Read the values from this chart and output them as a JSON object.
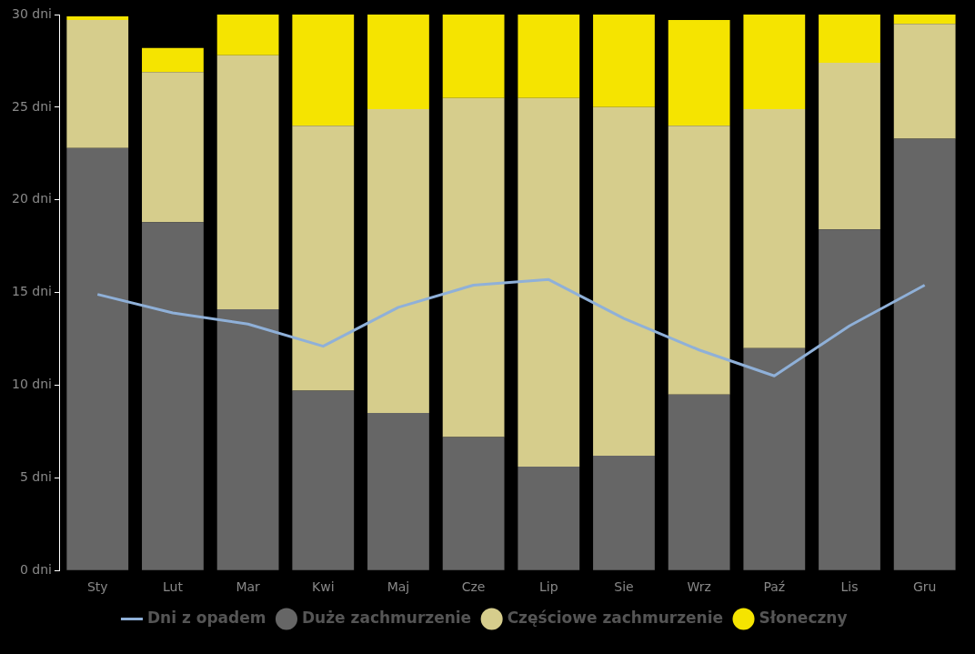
{
  "chart_data": {
    "type": "bar",
    "stacked": true,
    "categories": [
      "Sty",
      "Lut",
      "Mar",
      "Kwi",
      "Maj",
      "Cze",
      "Lip",
      "Sie",
      "Wrz",
      "Paź",
      "Lis",
      "Gru"
    ],
    "series": [
      {
        "name": "Duże zachmurzenie",
        "color": "#666666",
        "values": [
          22.8,
          18.8,
          14.1,
          9.7,
          8.5,
          7.2,
          5.6,
          6.2,
          9.5,
          12.0,
          18.4,
          23.3
        ]
      },
      {
        "name": "Częściowe zachmurzenie",
        "color": "#d6cd8c",
        "values": [
          6.9,
          8.1,
          13.7,
          14.3,
          16.4,
          18.3,
          19.9,
          18.8,
          14.5,
          12.9,
          9.0,
          6.2
        ]
      },
      {
        "name": "Słoneczny",
        "color": "#f5e400",
        "values": [
          0.2,
          1.3,
          2.2,
          6.0,
          5.1,
          4.5,
          4.5,
          5.0,
          5.7,
          5.1,
          2.6,
          0.5
        ]
      },
      {
        "name": "Dni z opadem",
        "type": "line",
        "color": "#8fb0d8",
        "marker": "none",
        "values": [
          14.9,
          13.9,
          13.3,
          12.1,
          14.2,
          15.4,
          15.7,
          13.6,
          11.9,
          10.5,
          13.2,
          15.4
        ]
      }
    ],
    "ylim": [
      0,
      30
    ],
    "yticks": [
      {
        "value": 0,
        "label": "0 dni"
      },
      {
        "value": 5,
        "label": "5 dni"
      },
      {
        "value": 10,
        "label": "10 dni"
      },
      {
        "value": 15,
        "label": "15 dni"
      },
      {
        "value": 20,
        "label": "20 dni"
      },
      {
        "value": 25,
        "label": "25 dni"
      },
      {
        "value": 30,
        "label": "30 dni"
      }
    ],
    "grid": false,
    "legend": "bottom"
  }
}
